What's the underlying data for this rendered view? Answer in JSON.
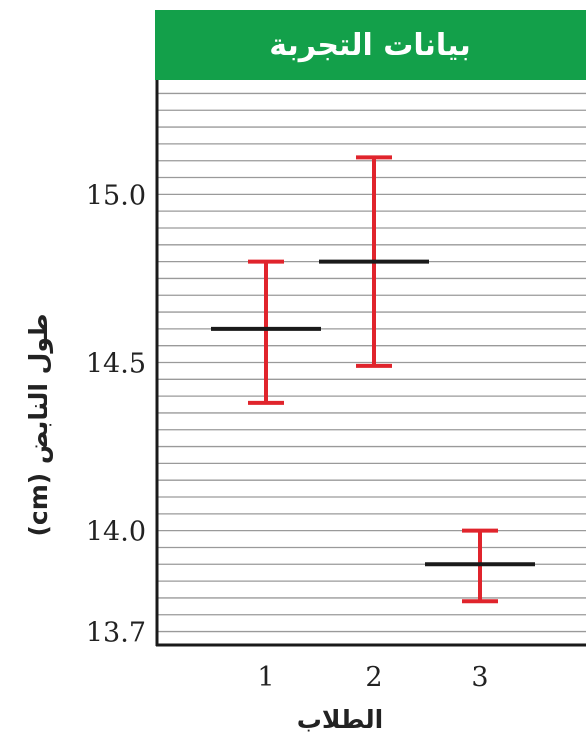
{
  "chart_data": {
    "type": "scatter",
    "title": "بيانات التجربة",
    "xlabel": "الطلاب",
    "ylabel": "طول النابض (cm)",
    "categories": [
      "1",
      "2",
      "3"
    ],
    "series": [
      {
        "mean": [
          14.6,
          14.8,
          13.9
        ],
        "upper": [
          14.8,
          15.11,
          14.0
        ],
        "lower": [
          14.38,
          14.49,
          13.79
        ]
      }
    ],
    "yticks": [
      "15.0",
      "14.5",
      "14.0",
      "13.7"
    ],
    "ytick_values": [
      15.0,
      14.5,
      14.0,
      13.7
    ],
    "ylim": [
      13.66,
      15.34
    ],
    "grid": true,
    "colors": {
      "header": "#13a04a",
      "mean_line": "#1a1a1a",
      "error_bar": "#e0242c",
      "grid": "#9a9a9a",
      "frame": "#1a1a1a"
    }
  }
}
